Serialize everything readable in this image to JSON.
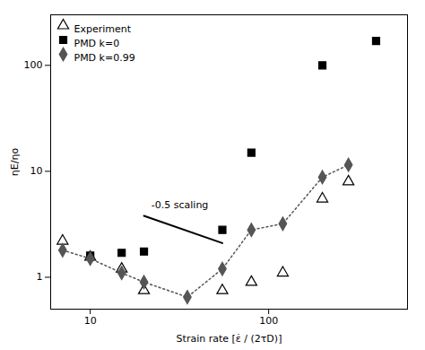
{
  "chart_data": {
    "type": "scatter",
    "log": true,
    "xlabel": "Strain rate [ε̇ / (2τD)]",
    "ylabel": "ηE/ηo",
    "xlim": [
      6,
      600
    ],
    "ylim": [
      0.5,
      300
    ],
    "xticks": [
      10,
      100
    ],
    "yticks": [
      1,
      10,
      100
    ],
    "grid": false,
    "legend": "upper left",
    "series": [
      {
        "name": "Experiment",
        "x": [
          7.0,
          10,
          15,
          20,
          55,
          80,
          120,
          200,
          280
        ],
        "values": [
          2.2,
          1.55,
          1.2,
          0.75,
          0.75,
          0.9,
          1.1,
          5.5,
          8.0
        ],
        "color": "black",
        "marker": "triangle-open",
        "line_style": "none"
      },
      {
        "name": "PMD k=0",
        "x": [
          10,
          15,
          20,
          55,
          80,
          200,
          400
        ],
        "values": [
          1.6,
          1.7,
          1.75,
          2.8,
          15.0,
          100,
          170
        ],
        "color": "black",
        "marker": "square",
        "line_style": "none"
      },
      {
        "name": "PMD k=0.99",
        "x": [
          7.0,
          10,
          15,
          20,
          35,
          55,
          80,
          120,
          200,
          280
        ],
        "values": [
          1.8,
          1.5,
          1.1,
          0.9,
          0.65,
          1.2,
          2.8,
          3.2,
          8.8,
          11.5
        ],
        "color": "#555555",
        "marker": "diamond",
        "line_style": "dotted"
      }
    ],
    "lines": [
      {
        "x": [
          20,
          55
        ],
        "values": [
          3.8,
          2.1
        ],
        "color": "black",
        "line_style": "solid"
      }
    ],
    "annotations": [
      {
        "text": "-0.5 scaling",
        "x": 22,
        "y": 4.5
      }
    ]
  }
}
